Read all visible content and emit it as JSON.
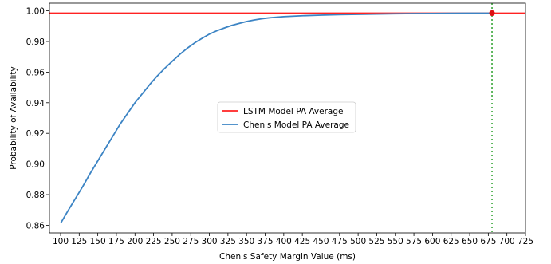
{
  "chart_data": {
    "type": "line",
    "title": "",
    "xlabel": "Chen's Safety Margin Value (ms)",
    "ylabel": "Probability of Availability",
    "xlim": [
      85,
      725
    ],
    "ylim": [
      0.855,
      1.005
    ],
    "xticks": [
      100,
      125,
      150,
      175,
      200,
      225,
      250,
      275,
      300,
      325,
      350,
      375,
      400,
      425,
      450,
      475,
      500,
      525,
      550,
      575,
      600,
      625,
      650,
      675,
      700,
      725
    ],
    "yticks": [
      0.86,
      0.88,
      0.9,
      0.92,
      0.94,
      0.96,
      0.98,
      1.0
    ],
    "xtick_labels": [
      "100",
      "125",
      "150",
      "175",
      "200",
      "225",
      "250",
      "275",
      "300",
      "325",
      "350",
      "375",
      "400",
      "425",
      "450",
      "475",
      "500",
      "525",
      "550",
      "575",
      "600",
      "625",
      "650",
      "675",
      "700",
      "725"
    ],
    "ytick_labels": [
      "0.86",
      "0.88",
      "0.90",
      "0.92",
      "0.94",
      "0.96",
      "0.98",
      "1.00"
    ],
    "grid": false,
    "legend_position": "center",
    "series": [
      {
        "name": "LSTM Model PA Average",
        "kind": "hline",
        "y": 0.9985,
        "color": "#ff2222"
      },
      {
        "name": "Chen's Model PA Average",
        "color": "#3c84c4",
        "x": [
          100,
          110,
          120,
          130,
          140,
          150,
          160,
          170,
          180,
          190,
          200,
          210,
          220,
          230,
          240,
          250,
          260,
          270,
          280,
          290,
          300,
          310,
          320,
          330,
          340,
          350,
          360,
          370,
          380,
          390,
          400,
          425,
          450,
          475,
          500,
          525,
          550,
          575,
          600,
          625,
          650,
          675,
          680
        ],
        "y": [
          0.8612,
          0.8695,
          0.8775,
          0.8855,
          0.894,
          0.902,
          0.91,
          0.918,
          0.926,
          0.933,
          0.94,
          0.946,
          0.952,
          0.9575,
          0.9625,
          0.967,
          0.9715,
          0.9755,
          0.979,
          0.982,
          0.9848,
          0.987,
          0.9888,
          0.9905,
          0.9918,
          0.993,
          0.994,
          0.9948,
          0.9954,
          0.9958,
          0.9962,
          0.9968,
          0.9972,
          0.9975,
          0.9977,
          0.9979,
          0.9981,
          0.9982,
          0.9983,
          0.9984,
          0.9985,
          0.9985,
          0.9985
        ]
      }
    ],
    "annotations": [
      {
        "kind": "vline",
        "x": 680,
        "style": "dotted",
        "color": "#2ca02c"
      },
      {
        "kind": "point",
        "x": 680,
        "y": 0.9985,
        "color": "#dd1111"
      }
    ]
  }
}
